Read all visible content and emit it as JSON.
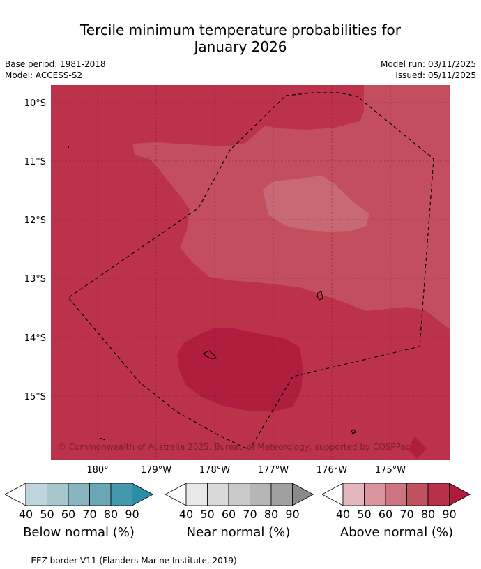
{
  "title_line1": "Tercile minimum temperature probabilities for",
  "title_line2": "January 2026",
  "base_period": "Base period: 1981-2018",
  "model": "Model: ACCESS-S2",
  "model_run": "Model run: 03/11/2025",
  "issued": "Issued: 05/11/2025",
  "lat_labels": [
    "10°S",
    "11°S",
    "12°S",
    "13°S",
    "14°S",
    "15°S"
  ],
  "lon_labels": [
    "180°",
    "179°W",
    "178°W",
    "177°W",
    "176°W",
    "175°W"
  ],
  "copyright": "© Commonwealth of Australia 2025, Bureau of Meteorology, supported by COSPPac",
  "legends": [
    {
      "title": "Below normal (%)",
      "ticks": [
        "40",
        "50",
        "60",
        "70",
        "80",
        "90"
      ],
      "colors": [
        "#ffffff",
        "#bfd5de",
        "#a6c5cd",
        "#89b5c2",
        "#6aa7b6",
        "#4398ac",
        "#2a8ea6"
      ]
    },
    {
      "title": "Near normal (%)",
      "ticks": [
        "40",
        "50",
        "60",
        "70",
        "80",
        "90"
      ],
      "colors": [
        "#ffffff",
        "#e8e8e8",
        "#d9d9d9",
        "#c9c9c9",
        "#b5b5b5",
        "#a0a0a0",
        "#8a8a8a"
      ]
    },
    {
      "title": "Above normal (%)",
      "ticks": [
        "40",
        "50",
        "60",
        "70",
        "80",
        "90"
      ],
      "colors": [
        "#ffffff",
        "#e2b7bd",
        "#d9959e",
        "#cc7480",
        "#c05260",
        "#b8304a",
        "#b01b3d"
      ]
    }
  ],
  "footer": "--  --  -- EEZ border V11 (Flanders Marine Institute, 2019).",
  "colors": {
    "above_80": "#bd324b",
    "above_70": "#c24e5e",
    "above_60": "#c76a76",
    "above_90": "#b01e3e"
  }
}
